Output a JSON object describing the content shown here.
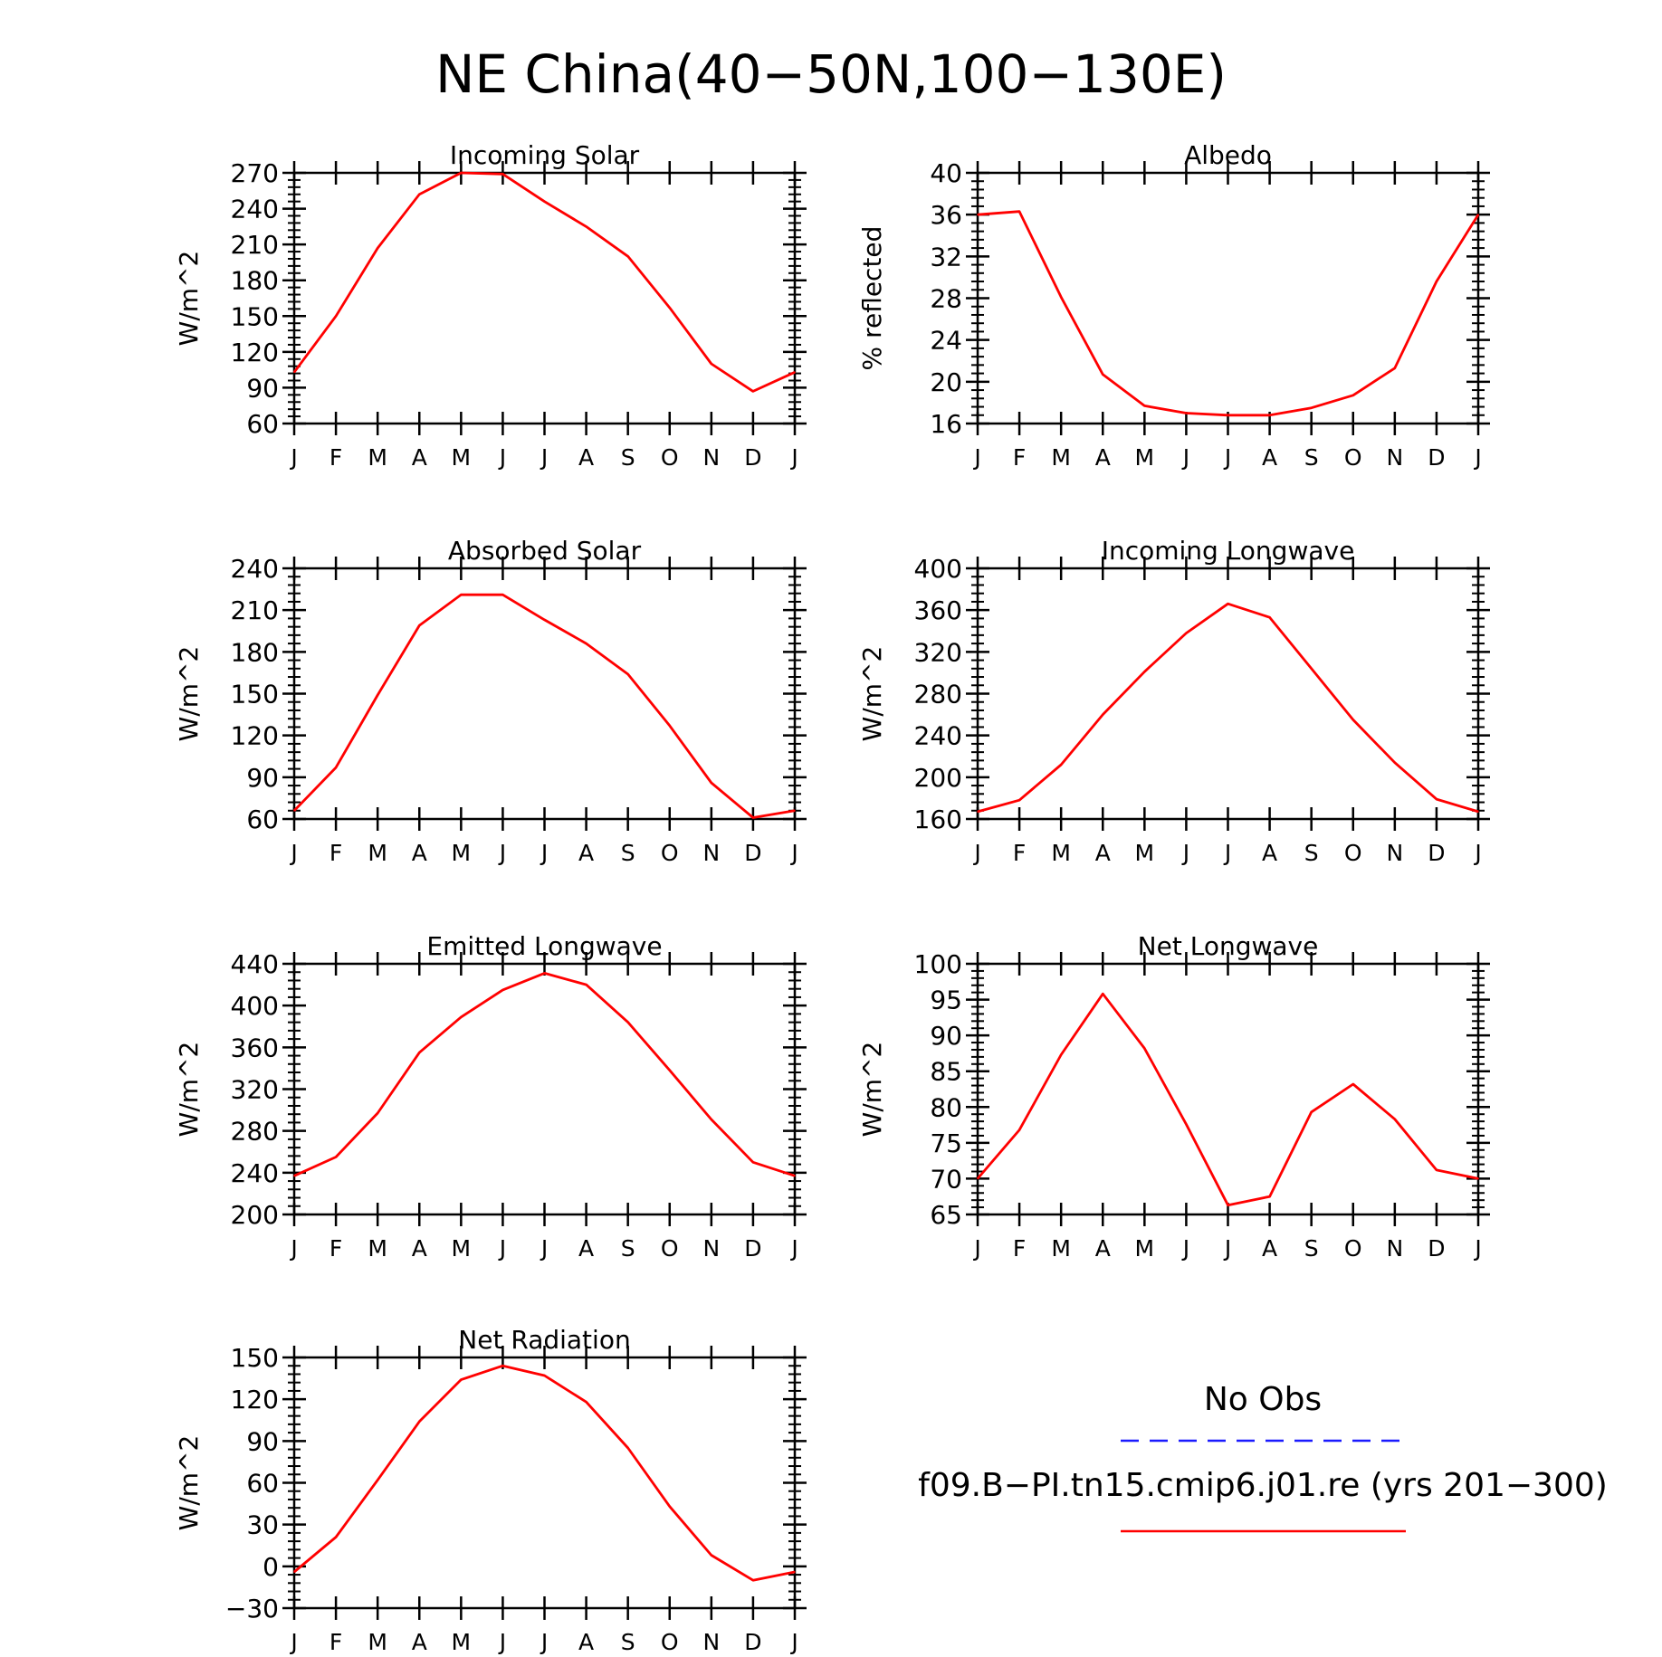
{
  "title": "NE China(40−50N,100−130E)",
  "months": [
    "J",
    "F",
    "M",
    "A",
    "M",
    "J",
    "J",
    "A",
    "S",
    "O",
    "N",
    "D",
    "J"
  ],
  "colors": {
    "model": "#ff0000",
    "obs": "#1a1aff",
    "axis": "#000000"
  },
  "legend": {
    "obs_label": "No Obs",
    "model_label": "f09.B−PI.tn15.cmip6.j01.re (yrs 201−300)"
  },
  "chart_data": [
    {
      "type": "line",
      "title": "Incoming Solar",
      "ylabel": "W/m^2",
      "ylim": [
        60,
        270
      ],
      "yticks": [
        60,
        90,
        120,
        150,
        180,
        210,
        240,
        270
      ],
      "categories": [
        "J",
        "F",
        "M",
        "A",
        "M",
        "J",
        "J",
        "A",
        "S",
        "O",
        "N",
        "D",
        "J"
      ],
      "series": [
        {
          "values": [
            103,
            150,
            207,
            252,
            270,
            269,
            246,
            225,
            200,
            157,
            110,
            87,
            103
          ]
        }
      ]
    },
    {
      "type": "line",
      "title": "Albedo",
      "ylabel": "% reflected",
      "ylim": [
        16,
        40
      ],
      "yticks": [
        16,
        20,
        24,
        28,
        32,
        36,
        40
      ],
      "categories": [
        "J",
        "F",
        "M",
        "A",
        "M",
        "J",
        "J",
        "A",
        "S",
        "O",
        "N",
        "D",
        "J"
      ],
      "series": [
        {
          "values": [
            36.0,
            36.3,
            28.1,
            20.7,
            17.7,
            17.0,
            16.8,
            16.8,
            17.5,
            18.7,
            21.3,
            29.6,
            36.0
          ]
        }
      ]
    },
    {
      "type": "line",
      "title": "Absorbed Solar",
      "ylabel": "W/m^2",
      "ylim": [
        60,
        240
      ],
      "yticks": [
        60,
        90,
        120,
        150,
        180,
        210,
        240
      ],
      "categories": [
        "J",
        "F",
        "M",
        "A",
        "M",
        "J",
        "J",
        "A",
        "S",
        "O",
        "N",
        "D",
        "J"
      ],
      "series": [
        {
          "values": [
            66,
            97,
            149,
            199,
            221,
            221,
            203,
            186,
            164,
            127,
            86,
            61,
            66
          ]
        }
      ]
    },
    {
      "type": "line",
      "title": "Incoming Longwave",
      "ylabel": "W/m^2",
      "ylim": [
        160,
        400
      ],
      "yticks": [
        160,
        200,
        240,
        280,
        320,
        360,
        400
      ],
      "categories": [
        "J",
        "F",
        "M",
        "A",
        "M",
        "J",
        "J",
        "A",
        "S",
        "O",
        "N",
        "D",
        "J"
      ],
      "series": [
        {
          "values": [
            167,
            178,
            212,
            260,
            301,
            338,
            366,
            353,
            304,
            255,
            214,
            179,
            167
          ]
        }
      ]
    },
    {
      "type": "line",
      "title": "Emitted Longwave",
      "ylabel": "W/m^2",
      "ylim": [
        200,
        440
      ],
      "yticks": [
        200,
        240,
        280,
        320,
        360,
        400,
        440
      ],
      "categories": [
        "J",
        "F",
        "M",
        "A",
        "M",
        "J",
        "J",
        "A",
        "S",
        "O",
        "N",
        "D",
        "J"
      ],
      "series": [
        {
          "values": [
            237,
            255,
            297,
            355,
            389,
            415,
            431,
            420,
            384,
            338,
            291,
            250,
            237
          ]
        }
      ]
    },
    {
      "type": "line",
      "title": "Net Longwave",
      "ylabel": "W/m^2",
      "ylim": [
        65,
        100
      ],
      "yticks": [
        65,
        70,
        75,
        80,
        85,
        90,
        95,
        100
      ],
      "categories": [
        "J",
        "F",
        "M",
        "A",
        "M",
        "J",
        "J",
        "A",
        "S",
        "O",
        "N",
        "D",
        "J"
      ],
      "series": [
        {
          "values": [
            70.0,
            76.8,
            87.3,
            95.8,
            88.2,
            77.6,
            66.3,
            67.5,
            79.3,
            83.2,
            78.3,
            71.2,
            70.0
          ]
        }
      ]
    },
    {
      "type": "line",
      "title": "Net Radiation",
      "ylabel": "W/m^2",
      "ylim": [
        -30,
        150
      ],
      "yticks": [
        -30,
        0,
        30,
        60,
        90,
        120,
        150
      ],
      "categories": [
        "J",
        "F",
        "M",
        "A",
        "M",
        "J",
        "J",
        "A",
        "S",
        "O",
        "N",
        "D",
        "J"
      ],
      "series": [
        {
          "values": [
            -4,
            21,
            62,
            104,
            134,
            144,
            137,
            118,
            85,
            43,
            8,
            -10,
            -4
          ]
        }
      ]
    }
  ]
}
